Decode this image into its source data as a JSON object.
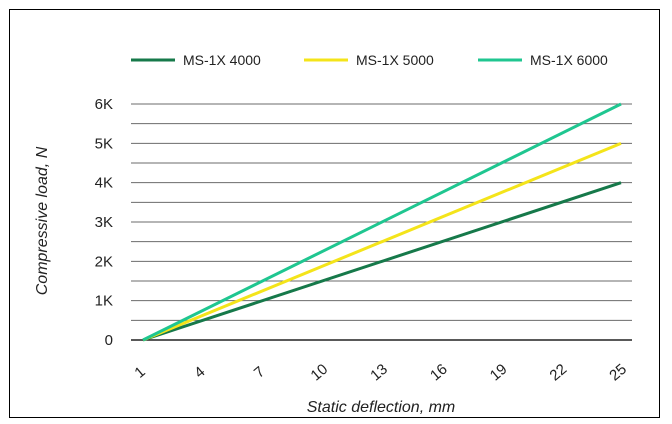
{
  "chart_data": {
    "type": "line",
    "title": "",
    "xlabel": "Static deflection, mm",
    "ylabel": "Compressive load, N",
    "x_ticks": [
      1,
      4,
      7,
      10,
      13,
      16,
      19,
      22,
      25
    ],
    "xlim": [
      1,
      25
    ],
    "y_ticks": [
      0,
      1000,
      2000,
      3000,
      4000,
      5000,
      6000
    ],
    "y_tick_labels": [
      "0",
      "1K",
      "2K",
      "3K",
      "4K",
      "5K",
      "6K"
    ],
    "ylim": [
      0,
      6000
    ],
    "grid": true,
    "legend_position": "top",
    "series": [
      {
        "name": "MS-1X 4000",
        "color": "#16794a",
        "x": [
          1,
          25
        ],
        "y": [
          0,
          4000
        ]
      },
      {
        "name": "MS-1X 5000",
        "color": "#f4e41a",
        "x": [
          1,
          25
        ],
        "y": [
          0,
          5000
        ]
      },
      {
        "name": "MS-1X 6000",
        "color": "#1fc690",
        "x": [
          1,
          25
        ],
        "y": [
          0,
          6000
        ]
      }
    ]
  }
}
